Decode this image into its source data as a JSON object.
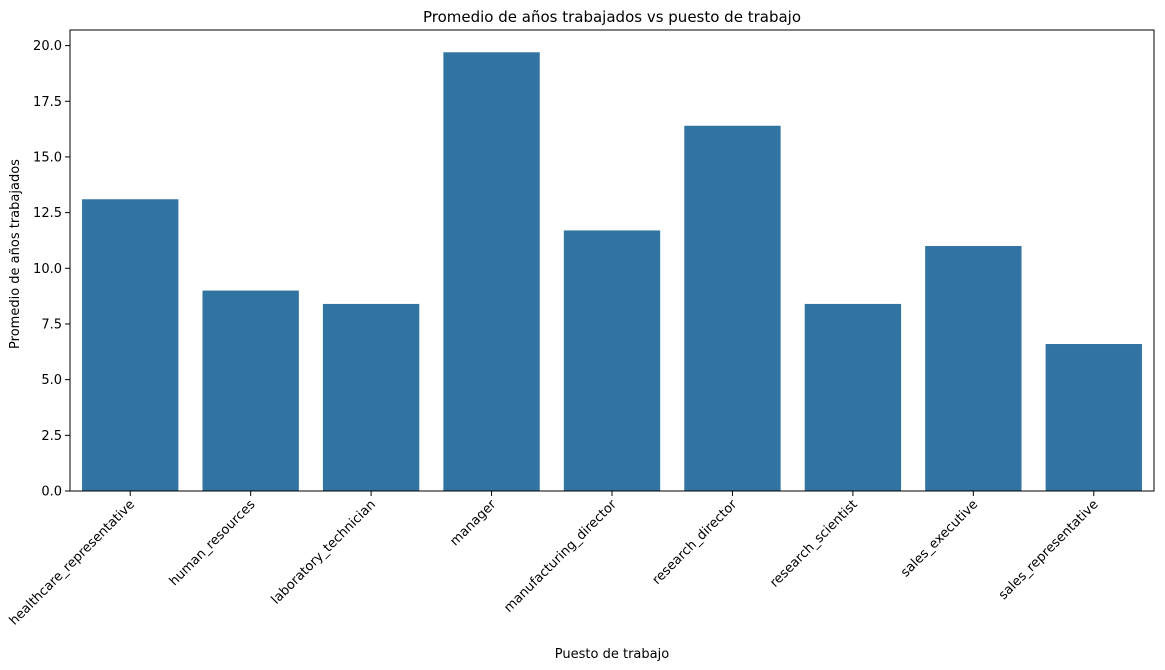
{
  "chart_data": {
    "type": "bar",
    "title": "Promedio de años trabajados vs puesto de trabajo",
    "xlabel": "Puesto de trabajo",
    "ylabel": "Promedio de años trabajados",
    "categories": [
      "healthcare_representative",
      "human_resources",
      "laboratory_technician",
      "manager",
      "manufacturing_director",
      "research_director",
      "research_scientist",
      "sales_executive",
      "sales_representative"
    ],
    "values": [
      13.1,
      9.0,
      8.4,
      19.7,
      11.7,
      16.4,
      8.4,
      11.0,
      6.6
    ],
    "ylim": [
      0,
      20.7
    ],
    "yticks": [
      "0.0",
      "2.5",
      "5.0",
      "7.5",
      "10.0",
      "12.5",
      "15.0",
      "17.5",
      "20.0"
    ],
    "bar_color": "#3274a1",
    "grid": false,
    "legend": "none"
  }
}
